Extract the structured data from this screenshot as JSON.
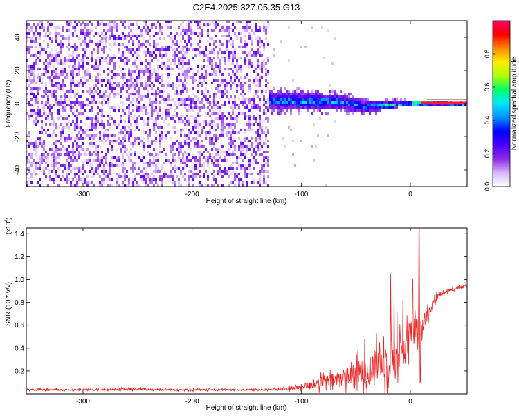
{
  "title": "C2E4.2025.327.05.35.G13",
  "chart_data": [
    {
      "type": "heatmap",
      "xlabel": "Height of straight line (km)",
      "ylabel": "Frequency (Hz)",
      "xlim": [
        -352,
        52
      ],
      "ylim": [
        -50,
        50
      ],
      "x_ticks": [
        -300,
        -200,
        -100,
        0
      ],
      "y_ticks": [
        -40,
        -20,
        0,
        20,
        40
      ],
      "x_tick_labels": [
        "-300",
        "-200",
        "-100",
        "0"
      ],
      "y_tick_labels": [
        "-40",
        "-20",
        "0",
        "20",
        "40"
      ],
      "noise_region_x": [
        -352,
        -130
      ],
      "signal_band": [
        {
          "x": -130,
          "center": 3,
          "width": 10
        },
        {
          "x": -100,
          "center": 2,
          "width": 10
        },
        {
          "x": -70,
          "center": 2,
          "width": 9
        },
        {
          "x": -40,
          "center": -1,
          "width": 7
        },
        {
          "x": -20,
          "center": 0,
          "width": 5
        },
        {
          "x": 0,
          "center": 1,
          "width": 3
        },
        {
          "x": 20,
          "center": 1,
          "width": 2
        },
        {
          "x": 52,
          "center": 0.5,
          "width": 1.5
        }
      ],
      "colorbar": {
        "label": "Normalized spectral amplitude",
        "range": [
          0,
          1
        ],
        "ticks": [
          "0.0",
          "0.2",
          "0.4",
          "0.6",
          "0.8"
        ],
        "colors": [
          "#ffffff",
          "#d8b4ff",
          "#8a2be2",
          "#4b00ff",
          "#0000ff",
          "#0090ff",
          "#00e5ff",
          "#00ff66",
          "#aaff00",
          "#ffee00",
          "#ff8800",
          "#ff0000",
          "#ff0066"
        ]
      }
    },
    {
      "type": "line",
      "xlabel": "Height of straight line (km)",
      "ylabel": "SNR (10 * v/v)",
      "y_multiplier": "(x10",
      "y_multiplier_exp": "4",
      "y_multiplier_close": ")",
      "xlim": [
        -352,
        52
      ],
      "ylim": [
        0,
        1.45
      ],
      "x_ticks": [
        -300,
        -200,
        -100,
        0
      ],
      "y_ticks": [
        0.2,
        0.4,
        0.6,
        0.8,
        1.0,
        1.2,
        1.4
      ],
      "x_tick_labels": [
        "-300",
        "-200",
        "-100",
        "0"
      ],
      "y_tick_labels": [
        "0.2",
        "0.4",
        "0.6",
        "0.8",
        "1.0",
        "1.2",
        "1.4"
      ],
      "line_color": "#ee2222",
      "envelope": {
        "x": [
          -352,
          -300,
          -250,
          -200,
          -150,
          -120,
          -100,
          -90,
          -80,
          -70,
          -60,
          -50,
          -40,
          -30,
          -20,
          -15,
          -10,
          -5,
          0,
          5,
          10,
          15,
          20,
          25,
          30,
          40,
          52
        ],
        "base": [
          0.035,
          0.035,
          0.04,
          0.035,
          0.035,
          0.04,
          0.06,
          0.08,
          0.1,
          0.12,
          0.15,
          0.17,
          0.2,
          0.25,
          0.32,
          0.35,
          0.38,
          0.42,
          0.5,
          0.55,
          0.6,
          0.68,
          0.78,
          0.85,
          0.89,
          0.92,
          0.94
        ],
        "noise": [
          0.015,
          0.015,
          0.02,
          0.015,
          0.015,
          0.02,
          0.05,
          0.08,
          0.1,
          0.12,
          0.15,
          0.2,
          0.25,
          0.3,
          0.35,
          0.4,
          0.35,
          0.3,
          0.28,
          0.25,
          0.2,
          0.12,
          0.08,
          0.05,
          0.04,
          0.03,
          0.03
        ]
      },
      "spikes": [
        {
          "x": -42,
          "y": 0.48
        },
        {
          "x": -18,
          "y": 1.05
        },
        {
          "x": -15,
          "y": 0.98
        },
        {
          "x": -7,
          "y": 0.82
        },
        {
          "x": 2,
          "y": 1.0
        },
        {
          "x": 8,
          "y": 1.45
        },
        {
          "x": 9,
          "y": 0.1
        }
      ]
    }
  ]
}
